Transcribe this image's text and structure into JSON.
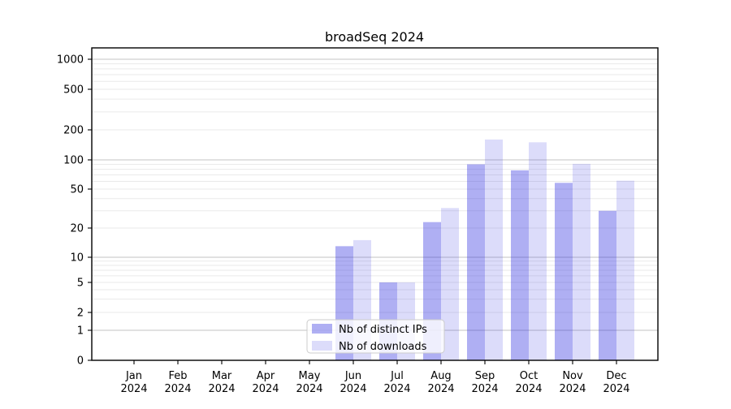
{
  "window": {
    "title": "broadSeq 2024"
  },
  "chart_data": {
    "type": "bar",
    "title": "broadSeq 2024",
    "categories": [
      "Jan 2024",
      "Feb 2024",
      "Mar 2024",
      "Apr 2024",
      "May 2024",
      "Jun 2024",
      "Jul 2024",
      "Aug 2024",
      "Sep 2024",
      "Oct 2024",
      "Nov 2024",
      "Dec 2024"
    ],
    "series": [
      {
        "name": "Nb of distinct IPs",
        "values": [
          0,
          0,
          0,
          0,
          0,
          13,
          5,
          23,
          90,
          78,
          58,
          30
        ],
        "color": "#2e2ee0",
        "opacity": 0.38
      },
      {
        "name": "Nb of downloads",
        "values": [
          0,
          0,
          0,
          0,
          0,
          15,
          5,
          32,
          160,
          150,
          91,
          61
        ],
        "color": "#2e2ee0",
        "opacity": 0.17
      }
    ],
    "yticks": [
      0,
      1,
      2,
      5,
      10,
      20,
      50,
      100,
      200,
      500,
      1000
    ],
    "scale": "symlog",
    "ylim": [
      0,
      1300
    ],
    "grid": true,
    "legend_position": "lower center",
    "xlabel": "",
    "ylabel": "",
    "colors": {
      "bar_dark": "#a9a9f4",
      "bar_light": "#d9d9f8",
      "grid_major": "#c3c3c3",
      "grid_minor": "#eaeaea",
      "spine": "#000000",
      "legend_border": "#cccccc"
    }
  }
}
